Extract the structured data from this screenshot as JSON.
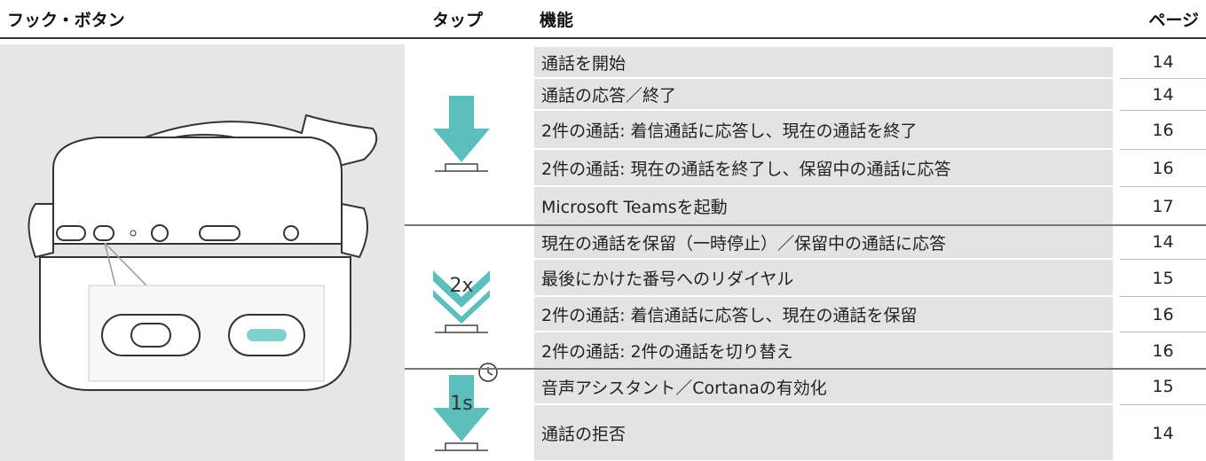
{
  "header": {
    "hook_button": "フック・ボタン",
    "tap": "タップ",
    "function": "機能",
    "page": "ページ"
  },
  "groups": [
    {
      "rows": [
        {
          "function": "通話を開始",
          "page": 14
        },
        {
          "function": "通話の応答／終了",
          "page": 14
        },
        {
          "function": "2件の通話: 着信通話に応答し、現在の通話を終了",
          "page": 16
        },
        {
          "function": "2件の通話: 現在の通話を終了し、保留中の通話に応答",
          "page": 16
        },
        {
          "function": "Microsoft Teamsを起動",
          "page": 17
        }
      ]
    },
    {
      "tap_label": "2x",
      "rows": [
        {
          "function": "現在の通話を保留（一時停止）／保留中の通話に応答",
          "page": 14
        },
        {
          "function": "最後にかけた番号へのリダイヤル",
          "page": 15
        },
        {
          "function": "2件の通話: 着信通話に応答し、現在の通話を保留",
          "page": 16
        },
        {
          "function": "2件の通話: 2件の通話を切り替え",
          "page": 16
        }
      ]
    },
    {
      "tap_label": "1s",
      "rows": [
        {
          "function": "音声アシスタント／Cortanaの有効化",
          "page": 15
        },
        {
          "function": "通話の拒否",
          "page": 14
        }
      ]
    }
  ]
}
